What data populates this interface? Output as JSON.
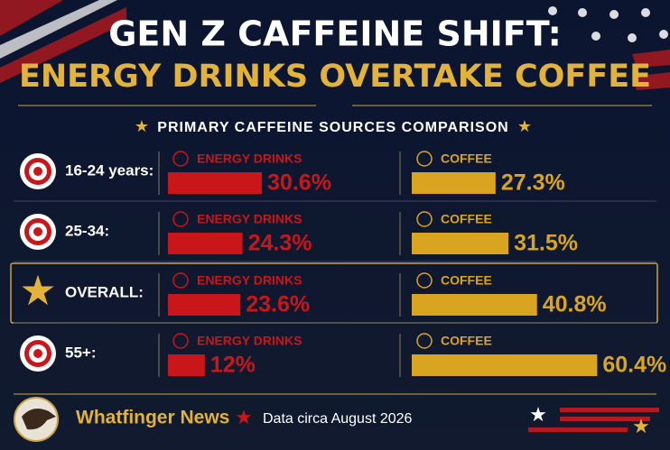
{
  "chart_data": {
    "type": "bar",
    "title": "GEN Z CAFFEINE SHIFT:",
    "subtitle": "ENERGY DRINKS OVERTAKE COFFEE",
    "heading": "PRIMARY CAFFEINE SOURCES COMPARISON",
    "categories": [
      "16-24 years:",
      "25-34:",
      "OVERALL:",
      "55+:"
    ],
    "highlight_category": 2,
    "series": [
      {
        "name": "ENERGY DRINKS",
        "color": "#c8161b",
        "values": [
          30.6,
          24.3,
          23.6,
          12
        ],
        "value_labels": [
          "30.6%",
          "24.3%",
          "23.6%",
          "12%"
        ]
      },
      {
        "name": "COFFEE",
        "color": "#d9a520",
        "values": [
          27.3,
          31.5,
          40.8,
          60.4
        ],
        "value_labels": [
          "27.3%",
          "31.5%",
          "40.8%",
          "60.4%"
        ]
      }
    ],
    "source": "Whatfinger News",
    "note": "Data circa August 2026"
  }
}
